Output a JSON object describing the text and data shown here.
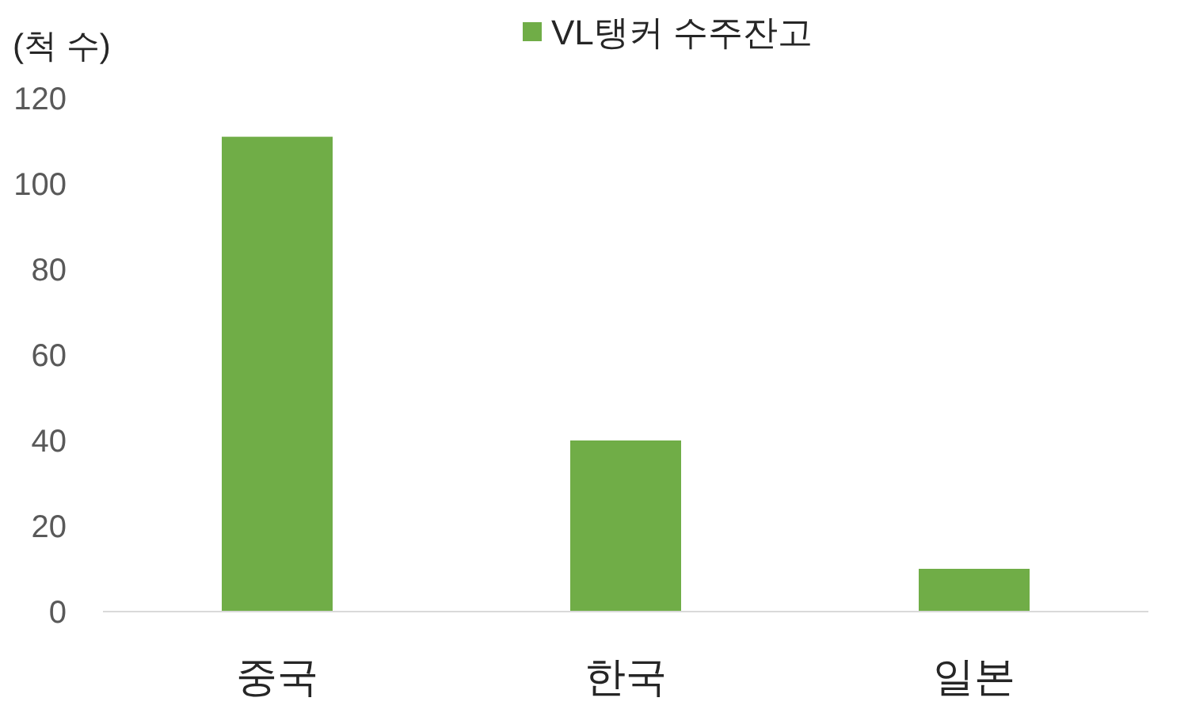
{
  "chart_data": {
    "type": "bar",
    "ylabel": "(척 수)",
    "categories": [
      "중국",
      "한국",
      "일본"
    ],
    "series": [
      {
        "name": "VL탱커 수주잔고",
        "color": "#70ad47",
        "values": [
          111,
          40,
          10
        ]
      }
    ],
    "ylim": [
      0,
      120
    ],
    "yticks": [
      0,
      20,
      40,
      60,
      80,
      100,
      120
    ],
    "grid": false,
    "legend": "top"
  }
}
